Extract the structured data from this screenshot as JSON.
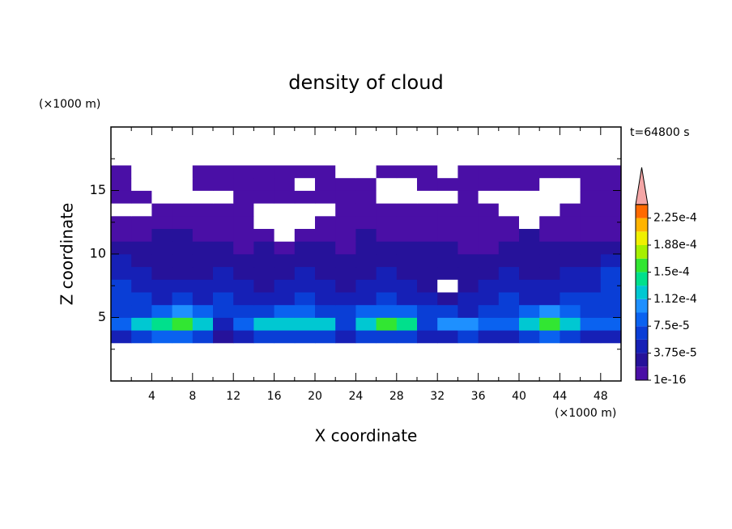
{
  "chart_data": {
    "type": "contour",
    "title": "density of cloud",
    "x_label": "X coordinate",
    "y_label": "Z coordinate",
    "x_unit": "(×1000 m)",
    "y_unit": "(×1000 m)",
    "annotation": "t=64800 s",
    "xlim": [
      0,
      50
    ],
    "ylim": [
      0,
      20
    ],
    "xticks": [
      4,
      8,
      12,
      16,
      20,
      24,
      28,
      32,
      36,
      40,
      44,
      48
    ],
    "xminor": [
      2,
      6,
      10,
      14,
      18,
      22,
      26,
      30,
      34,
      38,
      42,
      46,
      50
    ],
    "yticks": [
      5,
      10,
      15
    ],
    "yminor": [
      2.5,
      7.5,
      12.5,
      17.5
    ],
    "x": [
      0,
      2,
      4,
      6,
      8,
      10,
      12,
      14,
      16,
      18,
      20,
      22,
      24,
      26,
      28,
      30,
      32,
      34,
      36,
      38,
      40,
      42,
      44,
      46,
      48,
      50
    ],
    "y": [
      3,
      4,
      5,
      6,
      7,
      8,
      9,
      10,
      11,
      12,
      13,
      14,
      15,
      16,
      17,
      18
    ],
    "values": [
      [
        5e-05,
        7e-05,
        8e-05,
        8e-05,
        7e-05,
        3e-05,
        5e-05,
        7e-05,
        7e-05,
        7e-05,
        6e-05,
        4e-05,
        6e-05,
        7e-05,
        7e-05,
        4e-05,
        5e-05,
        6e-05,
        5e-05,
        5e-05,
        7e-05,
        8e-05,
        7e-05,
        5e-05,
        5e-05
      ],
      [
        9e-05,
        0.00012,
        0.00014,
        0.00016,
        0.00013,
        5e-05,
        8e-05,
        0.00012,
        0.00013,
        0.00013,
        0.00012,
        6e-05,
        0.00013,
        0.00015,
        0.00014,
        7e-05,
        0.0001,
        0.00011,
        9e-05,
        9e-05,
        0.00013,
        0.00015,
        0.00013,
        8e-05,
        9e-05
      ],
      [
        7e-05,
        6e-05,
        9e-05,
        0.0001,
        8e-05,
        6e-05,
        6e-05,
        7e-05,
        8e-05,
        8e-05,
        7e-05,
        6e-05,
        8e-05,
        9e-05,
        8e-05,
        7e-05,
        6e-05,
        5e-05,
        6e-05,
        7e-05,
        8e-05,
        0.0001,
        8e-05,
        6e-05,
        7e-05
      ],
      [
        7e-05,
        6e-05,
        5e-05,
        6e-05,
        5e-05,
        6e-05,
        5e-05,
        4e-05,
        5e-05,
        6e-05,
        5e-05,
        4e-05,
        5e-05,
        6e-05,
        5e-05,
        4e-05,
        3e-05,
        4e-05,
        5e-05,
        6e-05,
        5e-05,
        5e-05,
        6e-05,
        6e-05,
        7e-05
      ],
      [
        6e-05,
        5e-05,
        4e-05,
        4e-05,
        4e-05,
        5e-05,
        4e-05,
        3e-05,
        4e-05,
        5e-05,
        4e-05,
        3e-05,
        4e-05,
        5e-05,
        4e-05,
        3e-05,
        0,
        2e-05,
        4e-05,
        5e-05,
        4e-05,
        4e-05,
        5e-05,
        5e-05,
        6e-05
      ],
      [
        5e-05,
        4e-05,
        3e-05,
        3e-05,
        3e-05,
        4e-05,
        3e-05,
        2e-05,
        3e-05,
        4e-05,
        3e-05,
        2e-05,
        3e-05,
        4e-05,
        3e-05,
        2e-05,
        2e-05,
        3e-05,
        3e-05,
        4e-05,
        3e-05,
        3e-05,
        4e-05,
        4e-05,
        6e-05
      ],
      [
        4e-05,
        3e-05,
        3e-05,
        2e-05,
        2e-05,
        3e-05,
        2e-05,
        2e-05,
        2e-05,
        3e-05,
        2e-05,
        2e-05,
        2e-05,
        3e-05,
        2e-05,
        2e-05,
        2e-05,
        2e-05,
        2e-05,
        3e-05,
        2e-05,
        2e-05,
        3e-05,
        3e-05,
        5e-05
      ],
      [
        2e-05,
        2e-05,
        2e-05,
        2e-05,
        2e-05,
        2e-05,
        1e-05,
        2e-05,
        1e-05,
        2e-05,
        2e-05,
        1e-05,
        2e-05,
        2e-05,
        2e-05,
        2e-05,
        2e-05,
        1e-05,
        1e-05,
        2e-05,
        2e-05,
        2e-05,
        2e-05,
        2e-05,
        3e-05
      ],
      [
        1e-05,
        1e-05,
        2e-05,
        2e-05,
        1e-05,
        1e-05,
        1e-05,
        1e-05,
        0,
        1e-05,
        1e-05,
        1e-05,
        2e-05,
        1e-05,
        1e-05,
        1e-05,
        1e-05,
        1e-05,
        1e-05,
        1e-05,
        2e-05,
        1e-05,
        1e-05,
        1e-05,
        1e-05
      ],
      [
        1e-05,
        1e-05,
        1e-05,
        1e-05,
        1e-05,
        1e-05,
        1e-05,
        0,
        0,
        0,
        1e-05,
        1e-05,
        1e-05,
        1e-05,
        1e-05,
        1e-05,
        1e-05,
        1e-05,
        1e-05,
        1e-05,
        0,
        1e-05,
        1e-05,
        1e-05,
        1e-05
      ],
      [
        0,
        0,
        1e-05,
        1e-05,
        1e-05,
        1e-05,
        1e-05,
        0,
        0,
        0,
        0,
        1e-05,
        1e-05,
        1e-05,
        1e-05,
        1e-05,
        1e-05,
        1e-05,
        1e-05,
        0,
        0,
        0,
        1e-05,
        1e-05,
        1e-05
      ],
      [
        1e-05,
        1e-05,
        0,
        0,
        0,
        0,
        1e-05,
        1e-05,
        1e-05,
        1e-05,
        1e-05,
        1e-05,
        1e-05,
        0,
        0,
        0,
        0,
        1e-05,
        0,
        0,
        0,
        0,
        0,
        1e-05,
        1e-05
      ],
      [
        1e-05,
        0,
        0,
        0,
        1e-05,
        1e-05,
        1e-05,
        1e-05,
        1e-05,
        0,
        1e-05,
        1e-05,
        1e-05,
        0,
        0,
        1e-05,
        1e-05,
        1e-05,
        1e-05,
        1e-05,
        1e-05,
        0,
        0,
        1e-05,
        1e-05
      ],
      [
        1e-05,
        0,
        0,
        0,
        1e-05,
        1e-05,
        1e-05,
        1e-05,
        1e-05,
        1e-05,
        1e-05,
        0,
        0,
        1e-05,
        1e-05,
        1e-05,
        0,
        1e-05,
        1e-05,
        1e-05,
        1e-05,
        1e-05,
        1e-05,
        1e-05,
        1e-05
      ],
      [
        0,
        0,
        0,
        0,
        0,
        0,
        0,
        0,
        0,
        0,
        0,
        0,
        0,
        0,
        0,
        0,
        0,
        0,
        0,
        0,
        0,
        0,
        0,
        0,
        0
      ]
    ],
    "levels": [
      1e-16,
      1.875e-05,
      3.75e-05,
      5.625e-05,
      7.5e-05,
      9.375e-05,
      0.0001125,
      0.00013125,
      0.00015,
      0.00016875,
      0.0001875,
      0.00020625,
      0.000225,
      0.00024375
    ],
    "colors": [
      "#4a0fa6",
      "#26129a",
      "#1620b6",
      "#0a3ed6",
      "#0a62f0",
      "#1e90ff",
      "#00c8d2",
      "#00e08c",
      "#32e632",
      "#a6f000",
      "#f0f000",
      "#ffb400",
      "#ff6a00"
    ],
    "over_color": "#f4a6a6",
    "cbar_ticks": [
      {
        "value": 1e-16,
        "label": "1e-16"
      },
      {
        "value": 3.75e-05,
        "label": "3.75e-5"
      },
      {
        "value": 7.5e-05,
        "label": "7.5e-5"
      },
      {
        "value": 0.0001125,
        "label": "1.12e-4"
      },
      {
        "value": 0.00015,
        "label": "1.5e-4"
      },
      {
        "value": 0.0001875,
        "label": "1.88e-4"
      },
      {
        "value": 0.000225,
        "label": "2.25e-4"
      }
    ]
  }
}
